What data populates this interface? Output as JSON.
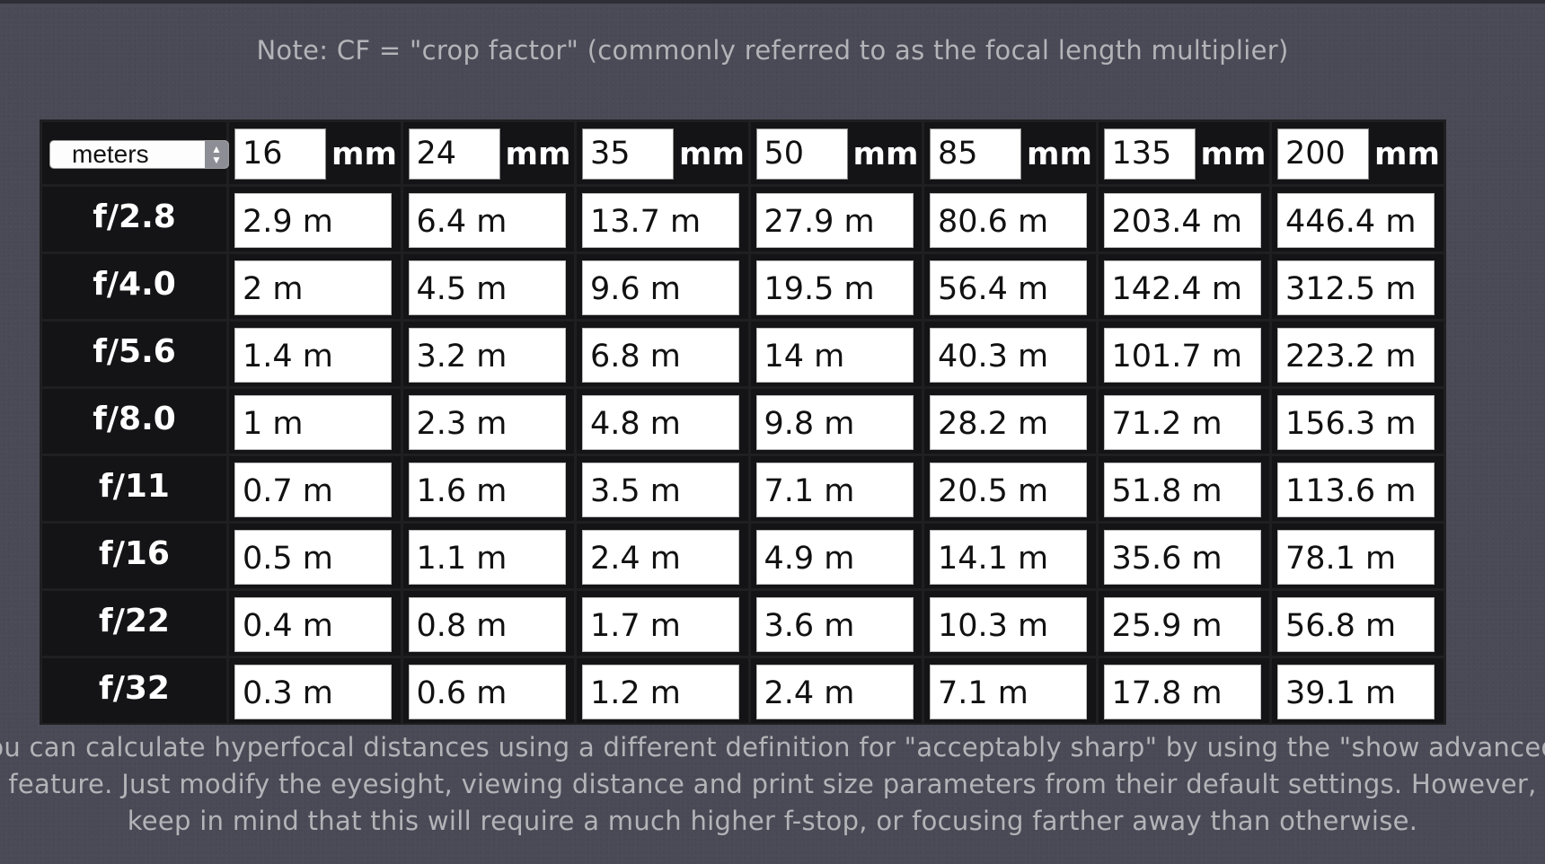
{
  "note": "Note: CF = \"crop factor\" (commonly referred to as the focal length multiplier)",
  "unit_select": {
    "selected": "meters"
  },
  "focal_lengths": [
    "16",
    "24",
    "35",
    "50",
    "85",
    "135",
    "200"
  ],
  "mm_label": "mm",
  "rows": [
    {
      "fstop": "f/2.8",
      "values": [
        "2.9 m",
        "6.4 m",
        "13.7 m",
        "27.9 m",
        "80.6 m",
        "203.4 m",
        "446.4 m"
      ]
    },
    {
      "fstop": "f/4.0",
      "values": [
        "2 m",
        "4.5 m",
        "9.6 m",
        "19.5 m",
        "56.4 m",
        "142.4 m",
        "312.5 m"
      ]
    },
    {
      "fstop": "f/5.6",
      "values": [
        "1.4 m",
        "3.2 m",
        "6.8 m",
        "14 m",
        "40.3 m",
        "101.7 m",
        "223.2 m"
      ]
    },
    {
      "fstop": "f/8.0",
      "values": [
        "1 m",
        "2.3 m",
        "4.8 m",
        "9.8 m",
        "28.2 m",
        "71.2 m",
        "156.3 m"
      ]
    },
    {
      "fstop": "f/11",
      "values": [
        "0.7 m",
        "1.6 m",
        "3.5 m",
        "7.1 m",
        "20.5 m",
        "51.8 m",
        "113.6 m"
      ]
    },
    {
      "fstop": "f/16",
      "values": [
        "0.5 m",
        "1.1 m",
        "2.4 m",
        "4.9 m",
        "14.1 m",
        "35.6 m",
        "78.1 m"
      ]
    },
    {
      "fstop": "f/22",
      "values": [
        "0.4 m",
        "0.8 m",
        "1.7 m",
        "3.6 m",
        "10.3 m",
        "25.9 m",
        "56.8 m"
      ]
    },
    {
      "fstop": "f/32",
      "values": [
        "0.3 m",
        "0.6 m",
        "1.2 m",
        "2.4 m",
        "7.1 m",
        "17.8 m",
        "39.1 m"
      ]
    }
  ],
  "footer": {
    "line1": "You can calculate hyperfocal distances using a different definition for \"acceptably sharp\" by using the \"show advanced\"",
    "line2": "feature. Just modify the eyesight, viewing distance and print size parameters from their default settings. However,",
    "line3": "keep in mind that this will require a much higher f-stop, or focusing farther away than otherwise."
  }
}
